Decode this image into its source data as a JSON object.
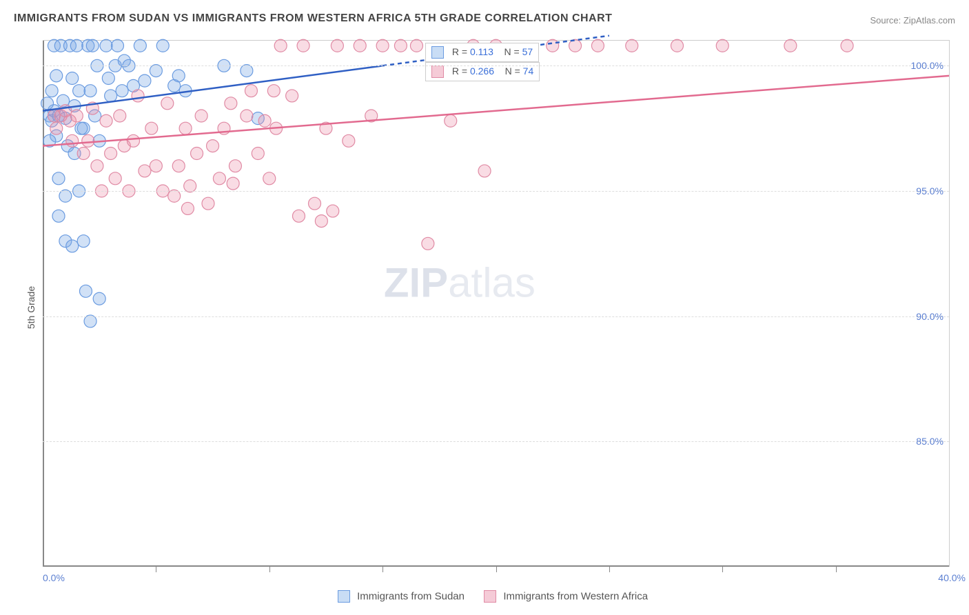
{
  "title": "IMMIGRANTS FROM SUDAN VS IMMIGRANTS FROM WESTERN AFRICA 5TH GRADE CORRELATION CHART",
  "source_label": "Source: ",
  "source_value": "ZipAtlas.com",
  "yaxis_label": "5th Grade",
  "watermark_bold": "ZIP",
  "watermark_light": "atlas",
  "chart": {
    "type": "scatter-with-regression",
    "xlim": [
      0,
      40
    ],
    "ylim": [
      80,
      101
    ],
    "yticks": [
      85,
      90,
      95,
      100
    ],
    "ytick_labels": [
      "85.0%",
      "90.0%",
      "95.0%",
      "100.0%"
    ],
    "xtick_minor": [
      5,
      10,
      15,
      20,
      25,
      30,
      35
    ],
    "x_left_label": "0.0%",
    "x_right_label": "40.0%",
    "grid_color": "#dddddd",
    "axis_color": "#888888",
    "background": "#ffffff",
    "series": [
      {
        "name": "sudan",
        "label": "Immigrants from Sudan",
        "color_fill": "rgba(124,169,230,0.35)",
        "color_stroke": "#6a9be0",
        "swatch_fill": "#c9ddf5",
        "swatch_border": "#6a9be0",
        "marker_r": 9,
        "R_label": "R = ",
        "R_value": "0.113",
        "N_label": "N = ",
        "N_value": "57",
        "regression": {
          "x1": 0,
          "y1": 98.2,
          "x2": 15,
          "y2": 100.0,
          "color": "#2f5fc4",
          "width": 2.5,
          "dash_after_x": 15,
          "dash_to_x": 25
        },
        "points": [
          [
            0.3,
            98.0
          ],
          [
            0.4,
            97.8
          ],
          [
            0.5,
            98.2
          ],
          [
            0.4,
            99.0
          ],
          [
            0.5,
            100.8
          ],
          [
            0.6,
            99.6
          ],
          [
            0.7,
            98.0
          ],
          [
            0.8,
            100.8
          ],
          [
            0.9,
            98.6
          ],
          [
            1.0,
            97.9
          ],
          [
            0.6,
            97.2
          ],
          [
            0.7,
            95.5
          ],
          [
            1.0,
            94.8
          ],
          [
            1.2,
            100.8
          ],
          [
            1.3,
            99.5
          ],
          [
            1.4,
            98.4
          ],
          [
            1.5,
            100.8
          ],
          [
            1.6,
            99.0
          ],
          [
            1.8,
            97.5
          ],
          [
            2.0,
            100.8
          ],
          [
            2.1,
            99.0
          ],
          [
            2.2,
            100.8
          ],
          [
            2.3,
            98.0
          ],
          [
            2.4,
            100.0
          ],
          [
            2.5,
            97.0
          ],
          [
            2.8,
            100.8
          ],
          [
            2.9,
            99.5
          ],
          [
            3.0,
            98.8
          ],
          [
            3.2,
            100.0
          ],
          [
            3.3,
            100.8
          ],
          [
            3.5,
            99.0
          ],
          [
            3.6,
            100.2
          ],
          [
            3.8,
            100.0
          ],
          [
            4.0,
            99.2
          ],
          [
            4.3,
            100.8
          ],
          [
            4.5,
            99.4
          ],
          [
            5.0,
            99.8
          ],
          [
            5.3,
            100.8
          ],
          [
            5.8,
            99.2
          ],
          [
            6.0,
            99.6
          ],
          [
            6.3,
            99.0
          ],
          [
            0.7,
            94.0
          ],
          [
            1.0,
            93.0
          ],
          [
            1.3,
            92.8
          ],
          [
            1.8,
            93.0
          ],
          [
            1.9,
            91.0
          ],
          [
            2.1,
            89.8
          ],
          [
            2.5,
            90.7
          ],
          [
            1.6,
            95.0
          ],
          [
            9.5,
            97.9
          ],
          [
            8.0,
            100.0
          ],
          [
            9.0,
            99.8
          ],
          [
            1.1,
            96.8
          ],
          [
            1.4,
            96.5
          ],
          [
            1.7,
            97.5
          ],
          [
            0.3,
            97.0
          ],
          [
            0.2,
            98.5
          ]
        ]
      },
      {
        "name": "western_africa",
        "label": "Immigrants from Western Africa",
        "color_fill": "rgba(235,140,165,0.30)",
        "color_stroke": "#e08aa4",
        "swatch_fill": "#f5cbd7",
        "swatch_border": "#e08aa4",
        "marker_r": 9,
        "R_label": "R = ",
        "R_value": "0.266",
        "N_label": "N = ",
        "N_value": "74",
        "regression": {
          "x1": 0,
          "y1": 96.8,
          "x2": 40,
          "y2": 99.6,
          "color": "#e26a8f",
          "width": 2.5
        },
        "points": [
          [
            0.5,
            98.0
          ],
          [
            0.6,
            97.5
          ],
          [
            0.8,
            98.0
          ],
          [
            1.0,
            98.2
          ],
          [
            1.2,
            97.8
          ],
          [
            1.3,
            97.0
          ],
          [
            1.5,
            98.0
          ],
          [
            1.8,
            96.5
          ],
          [
            2.0,
            97.0
          ],
          [
            2.2,
            98.3
          ],
          [
            2.4,
            96.0
          ],
          [
            2.6,
            95.0
          ],
          [
            2.8,
            97.8
          ],
          [
            3.0,
            96.5
          ],
          [
            3.2,
            95.5
          ],
          [
            3.4,
            98.0
          ],
          [
            3.6,
            96.8
          ],
          [
            3.8,
            95.0
          ],
          [
            4.0,
            97.0
          ],
          [
            4.2,
            98.8
          ],
          [
            4.5,
            95.8
          ],
          [
            4.8,
            97.5
          ],
          [
            5.0,
            96.0
          ],
          [
            5.3,
            95.0
          ],
          [
            5.5,
            98.5
          ],
          [
            5.8,
            94.8
          ],
          [
            6.0,
            96.0
          ],
          [
            6.3,
            97.5
          ],
          [
            6.5,
            95.2
          ],
          [
            6.8,
            96.5
          ],
          [
            7.0,
            98.0
          ],
          [
            7.3,
            94.5
          ],
          [
            7.5,
            96.8
          ],
          [
            7.8,
            95.5
          ],
          [
            8.0,
            97.5
          ],
          [
            8.3,
            98.5
          ],
          [
            8.4,
            95.3
          ],
          [
            8.5,
            96.0
          ],
          [
            9.0,
            98.0
          ],
          [
            9.2,
            99.0
          ],
          [
            9.5,
            96.5
          ],
          [
            9.8,
            97.8
          ],
          [
            10.2,
            99.0
          ],
          [
            10.3,
            97.5
          ],
          [
            10.5,
            100.8
          ],
          [
            11.0,
            98.8
          ],
          [
            11.5,
            100.8
          ],
          [
            12.0,
            94.5
          ],
          [
            12.3,
            93.8
          ],
          [
            12.5,
            97.5
          ],
          [
            12.8,
            94.2
          ],
          [
            13.0,
            100.8
          ],
          [
            13.5,
            97.0
          ],
          [
            14.0,
            100.8
          ],
          [
            14.5,
            98.0
          ],
          [
            15.0,
            100.8
          ],
          [
            15.8,
            100.8
          ],
          [
            16.5,
            100.8
          ],
          [
            17.0,
            92.9
          ],
          [
            18.0,
            97.8
          ],
          [
            19.0,
            100.8
          ],
          [
            19.5,
            95.8
          ],
          [
            20.0,
            100.8
          ],
          [
            22.5,
            100.8
          ],
          [
            23.5,
            100.8
          ],
          [
            24.5,
            100.8
          ],
          [
            26.0,
            100.8
          ],
          [
            28.0,
            100.8
          ],
          [
            30.0,
            100.8
          ],
          [
            33.0,
            100.8
          ],
          [
            35.5,
            100.8
          ],
          [
            11.3,
            94.0
          ],
          [
            10.0,
            95.5
          ],
          [
            6.4,
            94.3
          ]
        ]
      }
    ]
  }
}
